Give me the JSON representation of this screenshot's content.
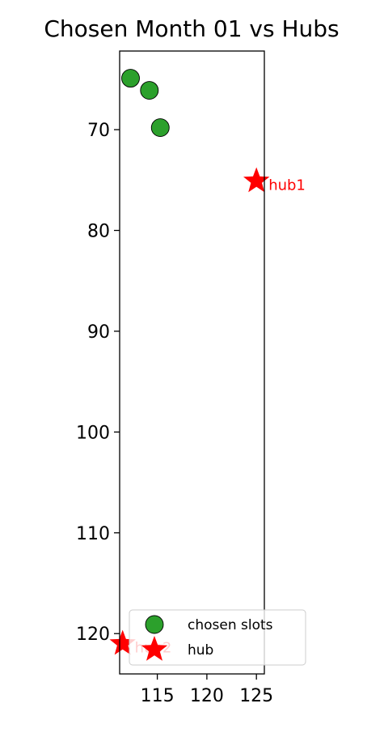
{
  "chart_data": {
    "type": "scatter",
    "title": "Chosen Month 01 vs Hubs",
    "xlabel": "",
    "ylabel": "",
    "xlim": [
      111.2,
      125.8
    ],
    "ylim": [
      124.0,
      62.2
    ],
    "y_inverted": true,
    "xticks": [
      115,
      120,
      125
    ],
    "yticks": [
      70,
      80,
      90,
      100,
      110,
      120
    ],
    "grid": false,
    "legend_position": "lower-right",
    "series": [
      {
        "name": "chosen slots",
        "marker": "circle",
        "color": "#2ca02c",
        "points": [
          {
            "x": 112.3,
            "y": 64.9
          },
          {
            "x": 114.2,
            "y": 66.1
          },
          {
            "x": 115.3,
            "y": 69.8
          }
        ]
      },
      {
        "name": "hub",
        "marker": "star",
        "color": "#ff0000",
        "points": [
          {
            "x": 125.0,
            "y": 75.1,
            "label": "hub1"
          },
          {
            "x": 111.5,
            "y": 121.0,
            "label": "hub2"
          }
        ]
      }
    ]
  }
}
